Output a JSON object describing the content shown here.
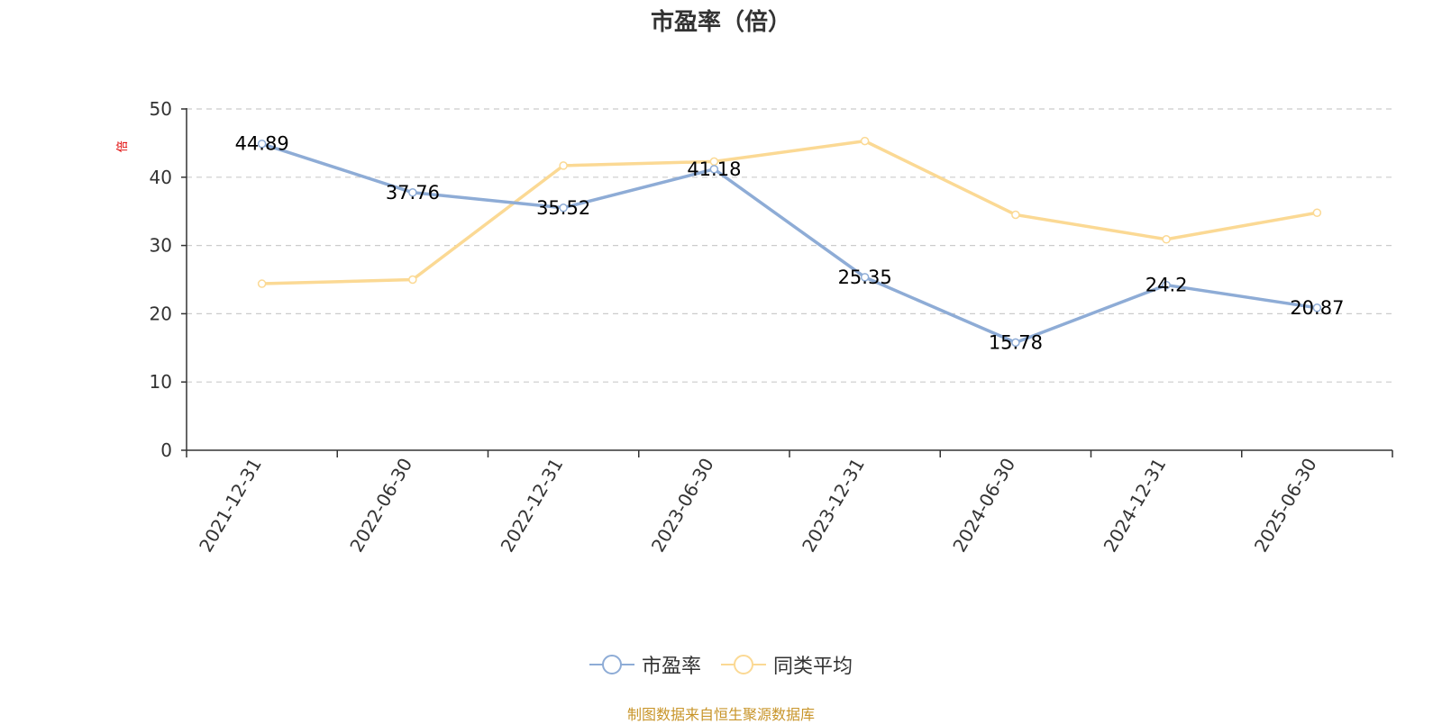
{
  "colors": {
    "series_pe": "#8eacd6",
    "series_avg": "#fbd994",
    "axis": "#333333",
    "grid": "#cccccc",
    "unit": "#e00000",
    "source": "#c8952a"
  },
  "source_note": "制图数据来自恒生聚源数据库",
  "chart_data": {
    "type": "line",
    "title": "市盈率（倍）",
    "ylabel": "倍",
    "xlabel": "",
    "ylim": [
      0,
      50
    ],
    "yticks": [
      0,
      10,
      20,
      30,
      40,
      50
    ],
    "grid": true,
    "legend_position": "bottom",
    "categories": [
      "2021-12-31",
      "2022-06-30",
      "2022-12-31",
      "2023-06-30",
      "2023-12-31",
      "2024-06-30",
      "2024-12-31",
      "2025-06-30"
    ],
    "series": [
      {
        "name": "市盈率",
        "values": [
          44.89,
          37.76,
          35.52,
          41.18,
          25.35,
          15.78,
          24.2,
          20.87
        ],
        "labels": [
          "44.89",
          "37.76",
          "35.52",
          "41.18",
          "25.35",
          "15.78",
          "24.2",
          "20.87"
        ]
      },
      {
        "name": "同类平均",
        "values": [
          24.4,
          25.0,
          41.7,
          42.3,
          45.3,
          34.5,
          30.9,
          34.8
        ]
      }
    ]
  }
}
